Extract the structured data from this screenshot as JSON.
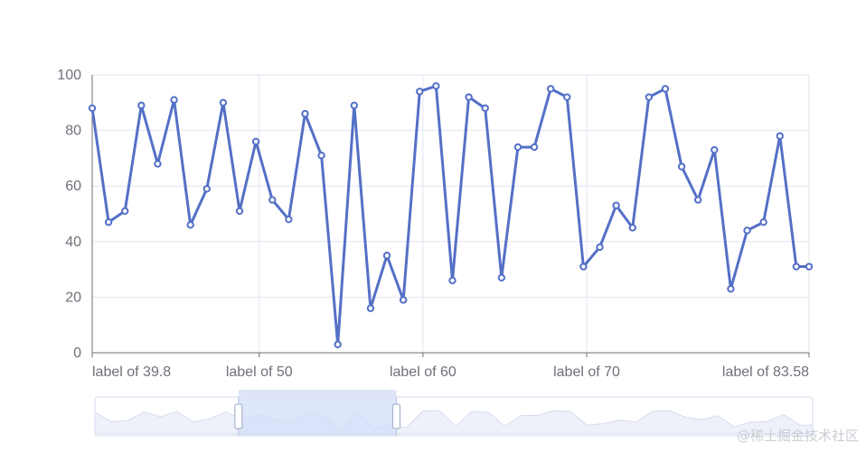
{
  "chart_data": {
    "type": "line",
    "title": "",
    "xlabel": "",
    "ylabel": "",
    "ylim": [
      0,
      100
    ],
    "yticks": [
      0,
      20,
      40,
      60,
      80,
      100
    ],
    "xlim": [
      39.8,
      83.58
    ],
    "x_tick_labels": [
      {
        "x": 39.8,
        "label": "label of 39.8"
      },
      {
        "x": 50,
        "label": "label of 50"
      },
      {
        "x": 60,
        "label": "label of 60"
      },
      {
        "x": 70,
        "label": "label of 70"
      },
      {
        "x": 83.58,
        "label": "label of 83.58"
      }
    ],
    "series": [
      {
        "color": "#5470c6",
        "x": [
          39.8,
          40.8,
          41.8,
          42.8,
          43.8,
          44.8,
          45.8,
          46.8,
          47.8,
          48.8,
          49.8,
          50.8,
          51.8,
          52.8,
          53.8,
          54.8,
          55.8,
          56.8,
          57.8,
          58.8,
          59.8,
          60.8,
          61.8,
          62.8,
          63.8,
          64.8,
          65.8,
          66.8,
          67.8,
          68.8,
          69.8,
          70.8,
          71.8,
          72.8,
          73.8,
          74.8,
          75.8,
          76.8,
          77.8,
          78.8,
          79.8,
          80.8,
          81.8,
          82.8,
          83.58
        ],
        "values": [
          88,
          47,
          51,
          89,
          68,
          91,
          46,
          59,
          90,
          51,
          76,
          55,
          48,
          86,
          71,
          3,
          89,
          16,
          35,
          19,
          94,
          96,
          26,
          92,
          88,
          27,
          74,
          74,
          95,
          92,
          31,
          38,
          53,
          45,
          92,
          95,
          67,
          55,
          73,
          23,
          44,
          47,
          78,
          31,
          31
        ]
      }
    ],
    "grid": true,
    "legend": "none",
    "data_zoom": {
      "start_fraction": 0.2,
      "end_fraction": 0.42
    }
  },
  "colors": {
    "line": "#5470c6",
    "grid": "#e0e6f1",
    "axis": "#6e7079",
    "slider_fill": "#d3ddf8",
    "slider_border": "#d2dbee"
  },
  "watermark": "@稀土掘金技术社区"
}
